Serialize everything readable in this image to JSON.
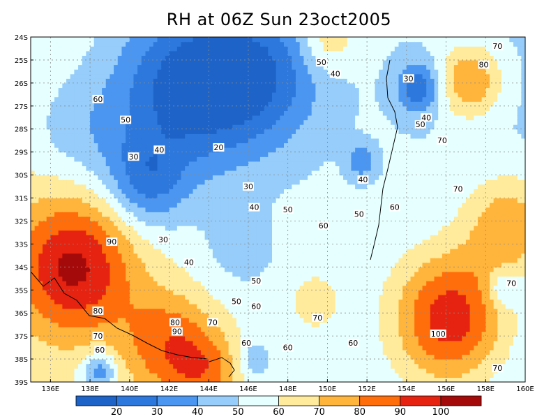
{
  "title": "RH at 06Z Sun 23oct2005",
  "chart_data": {
    "type": "heatmap",
    "title": "RH at 06Z Sun 23oct2005",
    "xlim": [
      135,
      160
    ],
    "ylim": [
      -39,
      -24
    ],
    "x_ticks": [
      {
        "value": 136,
        "label": "136E"
      },
      {
        "value": 138,
        "label": "138E"
      },
      {
        "value": 140,
        "label": "140E"
      },
      {
        "value": 142,
        "label": "142E"
      },
      {
        "value": 144,
        "label": "144E"
      },
      {
        "value": 146,
        "label": "146E"
      },
      {
        "value": 148,
        "label": "148E"
      },
      {
        "value": 150,
        "label": "150E"
      },
      {
        "value": 152,
        "label": "152E"
      },
      {
        "value": 154,
        "label": "154E"
      },
      {
        "value": 156,
        "label": "156E"
      },
      {
        "value": 158,
        "label": "158E"
      },
      {
        "value": 160,
        "label": "160E"
      }
    ],
    "y_ticks": [
      {
        "value": -24,
        "label": "24S"
      },
      {
        "value": -25,
        "label": "25S"
      },
      {
        "value": -26,
        "label": "26S"
      },
      {
        "value": -27,
        "label": "27S"
      },
      {
        "value": -28,
        "label": "28S"
      },
      {
        "value": -29,
        "label": "29S"
      },
      {
        "value": -30,
        "label": "30S"
      },
      {
        "value": -31,
        "label": "31S"
      },
      {
        "value": -32,
        "label": "32S"
      },
      {
        "value": -33,
        "label": "33S"
      },
      {
        "value": -34,
        "label": "34S"
      },
      {
        "value": -35,
        "label": "35S"
      },
      {
        "value": -36,
        "label": "36S"
      },
      {
        "value": -37,
        "label": "37S"
      },
      {
        "value": -38,
        "label": "38S"
      },
      {
        "value": -39,
        "label": "39S"
      }
    ],
    "grid": true,
    "levels": [
      20,
      30,
      40,
      50,
      60,
      70,
      80,
      90,
      100
    ],
    "colorbar": [
      {
        "lo": 10,
        "hi": 20,
        "color": "#1e64c8"
      },
      {
        "lo": 20,
        "hi": 30,
        "color": "#2d78dc"
      },
      {
        "lo": 30,
        "hi": 40,
        "color": "#4b96f0"
      },
      {
        "lo": 40,
        "hi": 50,
        "color": "#96cdfa"
      },
      {
        "lo": 50,
        "hi": 60,
        "color": "#e6ffff"
      },
      {
        "lo": 60,
        "hi": 70,
        "color": "#ffeb9b"
      },
      {
        "lo": 70,
        "hi": 80,
        "color": "#ffb43c"
      },
      {
        "lo": 80,
        "hi": 90,
        "color": "#ff6e0a"
      },
      {
        "lo": 90,
        "hi": 100,
        "color": "#e62310"
      },
      {
        "lo": 100,
        "hi": 110,
        "color": "#a50a0a"
      }
    ],
    "colorbar_labels": [
      "20",
      "30",
      "40",
      "50",
      "60",
      "70",
      "80",
      "90",
      "100"
    ],
    "field_centers": [
      {
        "lon": 142.8,
        "lat": -26.2,
        "rh": -40,
        "s": 2.6
      },
      {
        "lon": 146.6,
        "lat": -25.6,
        "rh": -28,
        "s": 2.2
      },
      {
        "lon": 140.8,
        "lat": -30.3,
        "rh": -26,
        "s": 1.4
      },
      {
        "lon": 154.6,
        "lat": -26.2,
        "rh": -28,
        "s": 0.8
      },
      {
        "lon": 151.7,
        "lat": -29.4,
        "rh": -20,
        "s": 0.5
      },
      {
        "lon": 137.5,
        "lat": -28.2,
        "rh": -12,
        "s": 1.8
      },
      {
        "lon": 145.5,
        "lat": -33.2,
        "rh": -8,
        "s": 1.3
      },
      {
        "lon": 137.2,
        "lat": -34.0,
        "rh": 45,
        "s": 2.2
      },
      {
        "lon": 142.0,
        "lat": -37.4,
        "rh": 30,
        "s": 1.7
      },
      {
        "lon": 144.0,
        "lat": -38.6,
        "rh": 22,
        "s": 1.3
      },
      {
        "lon": 156.2,
        "lat": -36.2,
        "rh": 46,
        "s": 2.0
      },
      {
        "lon": 159.2,
        "lat": -32.2,
        "rh": 28,
        "s": 1.6
      },
      {
        "lon": 157.2,
        "lat": -25.9,
        "rh": 30,
        "s": 1.1
      },
      {
        "lon": 149.4,
        "lat": -35.5,
        "rh": 14,
        "s": 0.9
      },
      {
        "lon": 150.0,
        "lat": -24.1,
        "rh": 18,
        "s": 1.0
      },
      {
        "lon": 138.5,
        "lat": -38.5,
        "rh": -28,
        "s": 0.6
      },
      {
        "lon": 158.9,
        "lat": -34.9,
        "rh": -18,
        "s": 0.6
      },
      {
        "lon": 146.2,
        "lat": -38.0,
        "rh": -14,
        "s": 0.6
      }
    ],
    "contour_labels": [
      {
        "text": "20",
        "lon": 144.5,
        "lat": -28.8
      },
      {
        "text": "30",
        "lon": 140.2,
        "lat": -29.2
      },
      {
        "text": "30",
        "lon": 141.7,
        "lat": -32.8
      },
      {
        "text": "30",
        "lon": 146.0,
        "lat": -30.5
      },
      {
        "text": "30",
        "lon": 154.1,
        "lat": -25.8
      },
      {
        "text": "40",
        "lon": 141.5,
        "lat": -28.9
      },
      {
        "text": "40",
        "lon": 143.0,
        "lat": -33.8
      },
      {
        "text": "40",
        "lon": 146.3,
        "lat": -31.4
      },
      {
        "text": "40",
        "lon": 150.4,
        "lat": -25.6
      },
      {
        "text": "40",
        "lon": 151.8,
        "lat": -30.2
      },
      {
        "text": "40",
        "lon": 155.0,
        "lat": -27.5
      },
      {
        "text": "50",
        "lon": 139.8,
        "lat": -27.6
      },
      {
        "text": "50",
        "lon": 148.0,
        "lat": -31.5
      },
      {
        "text": "50",
        "lon": 145.4,
        "lat": -35.5
      },
      {
        "text": "50",
        "lon": 146.4,
        "lat": -34.6
      },
      {
        "text": "50",
        "lon": 151.6,
        "lat": -31.7
      },
      {
        "text": "50",
        "lon": 149.7,
        "lat": -25.1
      },
      {
        "text": "50",
        "lon": 154.7,
        "lat": -27.8
      },
      {
        "text": "60",
        "lon": 138.4,
        "lat": -26.7
      },
      {
        "text": "60",
        "lon": 149.8,
        "lat": -32.2
      },
      {
        "text": "60",
        "lon": 146.4,
        "lat": -35.7
      },
      {
        "text": "60",
        "lon": 145.9,
        "lat": -37.3
      },
      {
        "text": "60",
        "lon": 148.0,
        "lat": -37.5
      },
      {
        "text": "60",
        "lon": 151.3,
        "lat": -37.3
      },
      {
        "text": "60",
        "lon": 153.4,
        "lat": -31.4
      },
      {
        "text": "60",
        "lon": 138.5,
        "lat": -37.6
      },
      {
        "text": "70",
        "lon": 138.4,
        "lat": -37.0
      },
      {
        "text": "70",
        "lon": 144.2,
        "lat": -36.4
      },
      {
        "text": "70",
        "lon": 149.5,
        "lat": -36.2
      },
      {
        "text": "70",
        "lon": 155.8,
        "lat": -28.5
      },
      {
        "text": "70",
        "lon": 156.6,
        "lat": -30.6
      },
      {
        "text": "70",
        "lon": 158.6,
        "lat": -24.4
      },
      {
        "text": "70",
        "lon": 159.3,
        "lat": -34.7
      },
      {
        "text": "70",
        "lon": 158.6,
        "lat": -38.4
      },
      {
        "text": "80",
        "lon": 157.9,
        "lat": -25.2
      },
      {
        "text": "80",
        "lon": 138.4,
        "lat": -35.9
      },
      {
        "text": "80",
        "lon": 142.3,
        "lat": -36.4
      },
      {
        "text": "90",
        "lon": 139.1,
        "lat": -32.9
      },
      {
        "text": "90",
        "lon": 142.4,
        "lat": -36.8
      },
      {
        "text": "100",
        "lon": 155.6,
        "lat": -36.9
      }
    ]
  }
}
